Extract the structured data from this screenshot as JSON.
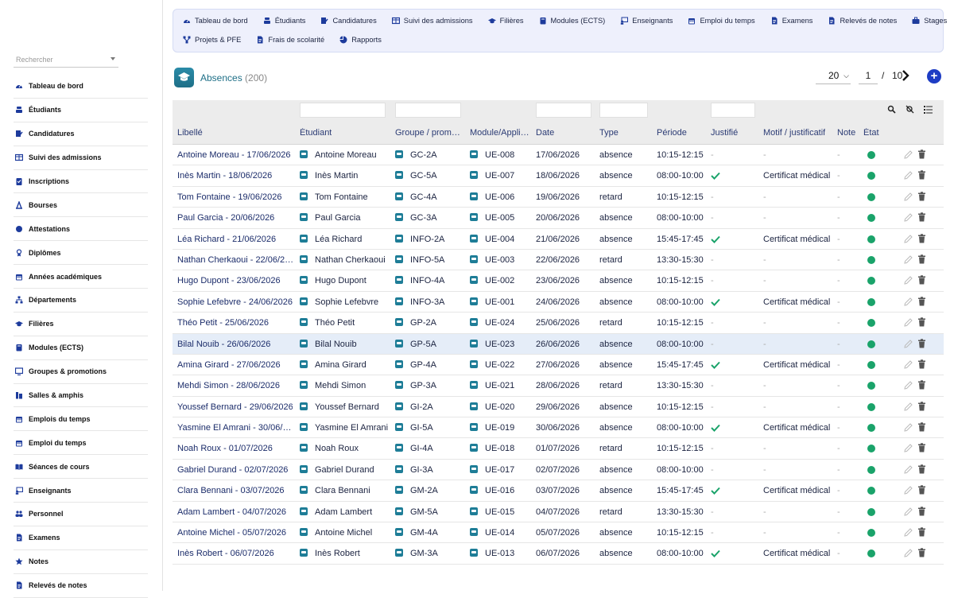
{
  "sidebar": {
    "search_placeholder": "Rechercher",
    "items": [
      {
        "label": "Tableau de bord",
        "icon": "dashboard-icon"
      },
      {
        "label": "Étudiants",
        "icon": "student-icon"
      },
      {
        "label": "Candidatures",
        "icon": "application-icon"
      },
      {
        "label": "Suivi des admissions",
        "icon": "table-icon"
      },
      {
        "label": "Inscriptions",
        "icon": "clipboard-icon"
      },
      {
        "label": "Bourses",
        "icon": "scholarship-icon"
      },
      {
        "label": "Attestations",
        "icon": "certificate-icon"
      },
      {
        "label": "Diplômes",
        "icon": "diploma-icon"
      },
      {
        "label": "Années académiques",
        "icon": "calendar-icon"
      },
      {
        "label": "Départements",
        "icon": "org-icon"
      },
      {
        "label": "Filières",
        "icon": "graduation-icon"
      },
      {
        "label": "Modules (ECTS)",
        "icon": "book-icon"
      },
      {
        "label": "Groupes & promotions",
        "icon": "monitor-icon"
      },
      {
        "label": "Salles & amphis",
        "icon": "door-icon"
      },
      {
        "label": "Emplois du temps",
        "icon": "calendar-icon"
      },
      {
        "label": "Emploi du temps",
        "icon": "calendar-icon"
      },
      {
        "label": "Séances de cours",
        "icon": "open-book-icon"
      },
      {
        "label": "Enseignants",
        "icon": "teacher-icon"
      },
      {
        "label": "Personnel",
        "icon": "people-icon"
      },
      {
        "label": "Examens",
        "icon": "document-icon"
      },
      {
        "label": "Notes",
        "icon": "star-icon"
      },
      {
        "label": "Relevés de notes",
        "icon": "document-icon"
      }
    ]
  },
  "topnav": {
    "row1": [
      {
        "label": "Tableau de bord",
        "icon": "dashboard-icon"
      },
      {
        "label": "Étudiants",
        "icon": "student-icon"
      },
      {
        "label": "Candidatures",
        "icon": "application-icon"
      },
      {
        "label": "Suivi des admissions",
        "icon": "table-icon"
      },
      {
        "label": "Filières",
        "icon": "graduation-icon"
      },
      {
        "label": "Modules (ECTS)",
        "icon": "book-icon"
      },
      {
        "label": "Enseignants",
        "icon": "teacher-icon"
      },
      {
        "label": "Emploi du temps",
        "icon": "calendar-icon"
      },
      {
        "label": "Examens",
        "icon": "document-icon"
      },
      {
        "label": "Relevés de notes",
        "icon": "document-icon"
      },
      {
        "label": "Stages",
        "icon": "briefcase-icon"
      }
    ],
    "row2": [
      {
        "label": "Projets & PFE",
        "icon": "project-icon"
      },
      {
        "label": "Frais de scolarité",
        "icon": "document-icon"
      },
      {
        "label": "Rapports",
        "icon": "pie-icon"
      }
    ]
  },
  "page": {
    "title": "Absences",
    "count": "(200)",
    "page_size": "20",
    "current_page": "1",
    "separator": "/",
    "total_pages": "10"
  },
  "columns": {
    "libelle": "Libellé",
    "etudiant": "Étudiant",
    "groupe": "Groupe / prom…",
    "module": "Module/Appli…",
    "date": "Date",
    "type": "Type",
    "periode": "Période",
    "justifie": "Justifié",
    "motif": "Motif / justificatif",
    "note": "Note",
    "etat": "État"
  },
  "rows": [
    {
      "libelle": "Antoine Moreau - 17/06/2026",
      "etudiant": "Antoine Moreau",
      "groupe": "GC-2A",
      "module": "UE-008",
      "date": "17/06/2026",
      "type": "absence",
      "periode": "10:15-12:15",
      "justifie": false,
      "motif": "-",
      "note": "-"
    },
    {
      "libelle": "Inès Martin - 18/06/2026",
      "etudiant": "Inès Martin",
      "groupe": "GC-5A",
      "module": "UE-007",
      "date": "18/06/2026",
      "type": "absence",
      "periode": "08:00-10:00",
      "justifie": true,
      "motif": "Certificat médical",
      "note": "-"
    },
    {
      "libelle": "Tom Fontaine - 19/06/2026",
      "etudiant": "Tom Fontaine",
      "groupe": "GC-4A",
      "module": "UE-006",
      "date": "19/06/2026",
      "type": "retard",
      "periode": "10:15-12:15",
      "justifie": false,
      "motif": "-",
      "note": "-"
    },
    {
      "libelle": "Paul Garcia - 20/06/2026",
      "etudiant": "Paul Garcia",
      "groupe": "GC-3A",
      "module": "UE-005",
      "date": "20/06/2026",
      "type": "absence",
      "periode": "08:00-10:00",
      "justifie": false,
      "motif": "-",
      "note": "-"
    },
    {
      "libelle": "Léa Richard - 21/06/2026",
      "etudiant": "Léa Richard",
      "groupe": "INFO-2A",
      "module": "UE-004",
      "date": "21/06/2026",
      "type": "absence",
      "periode": "15:45-17:45",
      "justifie": true,
      "motif": "Certificat médical",
      "note": "-"
    },
    {
      "libelle": "Nathan Cherkaoui - 22/06/2…",
      "etudiant": "Nathan Cherkaoui",
      "groupe": "INFO-5A",
      "module": "UE-003",
      "date": "22/06/2026",
      "type": "retard",
      "periode": "13:30-15:30",
      "justifie": false,
      "motif": "-",
      "note": "-"
    },
    {
      "libelle": "Hugo Dupont - 23/06/2026",
      "etudiant": "Hugo Dupont",
      "groupe": "INFO-4A",
      "module": "UE-002",
      "date": "23/06/2026",
      "type": "absence",
      "periode": "10:15-12:15",
      "justifie": false,
      "motif": "-",
      "note": "-"
    },
    {
      "libelle": "Sophie Lefebvre - 24/06/2026",
      "etudiant": "Sophie Lefebvre",
      "groupe": "INFO-3A",
      "module": "UE-001",
      "date": "24/06/2026",
      "type": "absence",
      "periode": "08:00-10:00",
      "justifie": true,
      "motif": "Certificat médical",
      "note": "-"
    },
    {
      "libelle": "Théo Petit - 25/06/2026",
      "etudiant": "Théo Petit",
      "groupe": "GP-2A",
      "module": "UE-024",
      "date": "25/06/2026",
      "type": "retard",
      "periode": "10:15-12:15",
      "justifie": false,
      "motif": "-",
      "note": "-"
    },
    {
      "libelle": "Bilal Nouib - 26/06/2026",
      "etudiant": "Bilal Nouib",
      "groupe": "GP-5A",
      "module": "UE-023",
      "date": "26/06/2026",
      "type": "absence",
      "periode": "08:00-10:00",
      "justifie": false,
      "motif": "-",
      "note": "-",
      "highlight": true
    },
    {
      "libelle": "Amina Girard - 27/06/2026",
      "etudiant": "Amina Girard",
      "groupe": "GP-4A",
      "module": "UE-022",
      "date": "27/06/2026",
      "type": "absence",
      "periode": "15:45-17:45",
      "justifie": true,
      "motif": "Certificat médical",
      "note": "-"
    },
    {
      "libelle": "Mehdi Simon - 28/06/2026",
      "etudiant": "Mehdi Simon",
      "groupe": "GP-3A",
      "module": "UE-021",
      "date": "28/06/2026",
      "type": "retard",
      "periode": "13:30-15:30",
      "justifie": false,
      "motif": "-",
      "note": "-"
    },
    {
      "libelle": "Youssef Bernard - 29/06/2026",
      "etudiant": "Youssef Bernard",
      "groupe": "GI-2A",
      "module": "UE-020",
      "date": "29/06/2026",
      "type": "absence",
      "periode": "10:15-12:15",
      "justifie": false,
      "motif": "-",
      "note": "-"
    },
    {
      "libelle": "Yasmine El Amrani - 30/06/…",
      "etudiant": "Yasmine El Amrani",
      "groupe": "GI-5A",
      "module": "UE-019",
      "date": "30/06/2026",
      "type": "absence",
      "periode": "08:00-10:00",
      "justifie": true,
      "motif": "Certificat médical",
      "note": "-"
    },
    {
      "libelle": "Noah Roux - 01/07/2026",
      "etudiant": "Noah Roux",
      "groupe": "GI-4A",
      "module": "UE-018",
      "date": "01/07/2026",
      "type": "retard",
      "periode": "10:15-12:15",
      "justifie": false,
      "motif": "-",
      "note": "-"
    },
    {
      "libelle": "Gabriel Durand - 02/07/2026",
      "etudiant": "Gabriel Durand",
      "groupe": "GI-3A",
      "module": "UE-017",
      "date": "02/07/2026",
      "type": "absence",
      "periode": "08:00-10:00",
      "justifie": false,
      "motif": "-",
      "note": "-"
    },
    {
      "libelle": "Clara Bennani - 03/07/2026",
      "etudiant": "Clara Bennani",
      "groupe": "GM-2A",
      "module": "UE-016",
      "date": "03/07/2026",
      "type": "absence",
      "periode": "15:45-17:45",
      "justifie": true,
      "motif": "Certificat médical",
      "note": "-"
    },
    {
      "libelle": "Adam Lambert - 04/07/2026",
      "etudiant": "Adam Lambert",
      "groupe": "GM-5A",
      "module": "UE-015",
      "date": "04/07/2026",
      "type": "retard",
      "periode": "13:30-15:30",
      "justifie": false,
      "motif": "-",
      "note": "-"
    },
    {
      "libelle": "Antoine Michel - 05/07/2026",
      "etudiant": "Antoine Michel",
      "groupe": "GM-4A",
      "module": "UE-014",
      "date": "05/07/2026",
      "type": "absence",
      "periode": "10:15-12:15",
      "justifie": false,
      "motif": "-",
      "note": "-"
    },
    {
      "libelle": "Inès Robert - 06/07/2026",
      "etudiant": "Inès Robert",
      "groupe": "GM-3A",
      "module": "UE-013",
      "date": "06/07/2026",
      "type": "absence",
      "periode": "08:00-10:00",
      "justifie": true,
      "motif": "Certificat médical",
      "note": "-"
    }
  ],
  "colors": {
    "accent": "#1e6f87",
    "nav_bg": "#eef0fc",
    "status_ok": "#1aa36a",
    "check": "#1aa36a",
    "add_button": "#1d3cc4"
  }
}
